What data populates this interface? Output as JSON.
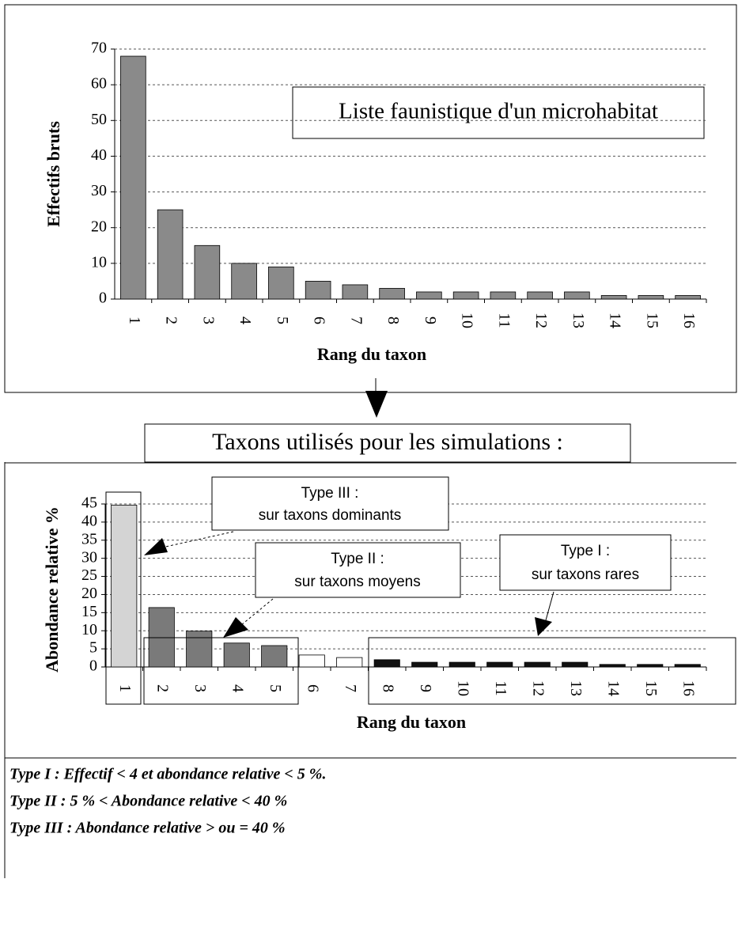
{
  "chart_data": [
    {
      "type": "bar",
      "title": "Liste faunistique d'un microhabitat",
      "x_label": "Rang du taxon",
      "y_label": "Effectifs bruts",
      "categories": [
        "1",
        "2",
        "3",
        "4",
        "5",
        "6",
        "7",
        "8",
        "9",
        "10",
        "11",
        "12",
        "13",
        "14",
        "15",
        "16"
      ],
      "values": [
        68,
        25,
        15,
        10,
        9,
        5,
        4,
        3,
        2,
        2,
        2,
        2,
        2,
        1,
        1,
        1
      ],
      "color": "#8a8a8a",
      "ylim": [
        0,
        70
      ],
      "yticks": [
        0,
        10,
        20,
        30,
        40,
        50,
        60,
        70
      ],
      "grid": true
    },
    {
      "type": "bar",
      "title": "Taxons utilisés pour les simulations :",
      "x_label": "Rang du taxon",
      "y_label": "Abondance relative %",
      "categories": [
        "1",
        "2",
        "3",
        "4",
        "5",
        "6",
        "7",
        "8",
        "9",
        "10",
        "11",
        "12",
        "13",
        "14",
        "15",
        "16"
      ],
      "values": [
        44.7,
        16.4,
        9.9,
        6.6,
        5.9,
        3.3,
        2.6,
        2.0,
        1.3,
        1.3,
        1.3,
        1.3,
        1.3,
        0.7,
        0.7,
        0.7
      ],
      "colors": [
        "#d4d4d4",
        "#7a7a7a",
        "#7a7a7a",
        "#7a7a7a",
        "#7a7a7a",
        "#ffffff",
        "#ffffff",
        "#111111",
        "#111111",
        "#111111",
        "#111111",
        "#111111",
        "#111111",
        "#111111",
        "#111111",
        "#111111"
      ],
      "ylim": [
        0,
        45
      ],
      "yticks": [
        0,
        5,
        10,
        15,
        20,
        25,
        30,
        35,
        40,
        45
      ],
      "grid": true,
      "annotations": [
        {
          "title": "Type III :",
          "text": "sur taxons dominants"
        },
        {
          "title": "Type II :",
          "text": "sur taxons moyens"
        },
        {
          "title": "Type I :",
          "text": "sur taxons rares"
        }
      ]
    }
  ],
  "notes": [
    "Type I : Effectif < 4 et abondance relative < 5 %.",
    "Type II : 5 % < Abondance relative < 40 %",
    "Type III : Abondance relative > ou = 40 %"
  ]
}
